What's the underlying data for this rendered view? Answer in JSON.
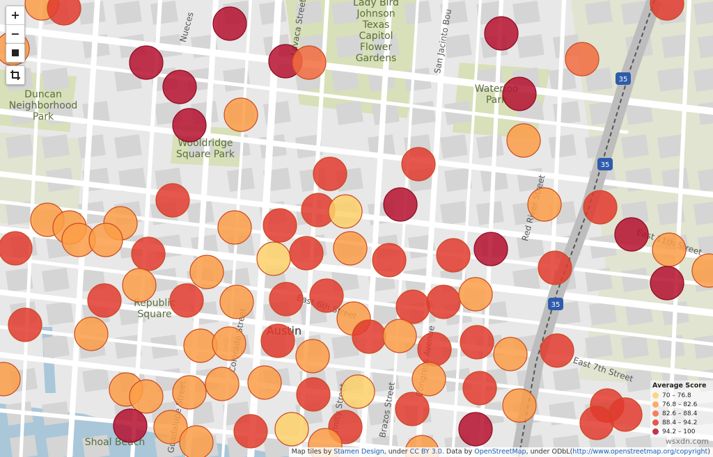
{
  "controls": {
    "zoom_in": "+",
    "zoom_out": "−",
    "stop_icon": "square-icon",
    "crop_icon": "crop-icon"
  },
  "places": [
    {
      "label": "Lady Bird\nJohnson\nTexas\nCapitol\nFlower\nGardens"
    },
    {
      "label": "Duncan\nNeighborhood\nPark"
    },
    {
      "label": "Wooldridge\nSquare Park"
    },
    {
      "label": "Waterloo\nPark"
    },
    {
      "label": "Republic\nSquare"
    },
    {
      "label": "Austin"
    },
    {
      "label": "Shoal Beach"
    }
  ],
  "streets": [
    {
      "label": "Nueces"
    },
    {
      "label": "Lavaca Street"
    },
    {
      "label": "San Jacinto Bou"
    },
    {
      "label": "East 6th Street"
    },
    {
      "label": "Colorado Street"
    },
    {
      "label": "Guadalupe Street"
    },
    {
      "label": "Trinity Street"
    },
    {
      "label": "Brazos Street"
    },
    {
      "label": "East 7th Street"
    },
    {
      "label": "East 11th Street"
    },
    {
      "label": "Red River Street"
    },
    {
      "label": "Congress Avenue"
    }
  ],
  "highway_shields": [
    "35",
    "35",
    "35"
  ],
  "colors": {
    "bin1": "#fdd06a",
    "bin2": "#fb9d47",
    "bin3": "#f26c3f",
    "bin4": "#e23a2e",
    "bin5": "#b5112f",
    "water": "#a9c7d9",
    "park": "#d7e0b8",
    "building": "#d9d9d9",
    "road": "#ffffff"
  },
  "legend": {
    "title": "Average Score",
    "entries": [
      {
        "label": "70 – 76.8",
        "color": "#fdd06a"
      },
      {
        "label": "76.8 – 82.6",
        "color": "#fb9d47"
      },
      {
        "label": "82.6 – 88.4",
        "color": "#f26c3f"
      },
      {
        "label": "88.4 – 94.2",
        "color": "#e23a2e"
      },
      {
        "label": "94.2 – 100",
        "color": "#b5112f"
      }
    ]
  },
  "attribution": {
    "part1": "Map tiles by ",
    "link1": "Stamen Design",
    "part2": ", under ",
    "link2": "CC BY 3.0",
    "part3": ". Data by ",
    "link3": "OpenStreetMap",
    "part4": ", under ODbL(",
    "link4": "http://www.openstreetmap.org/copyright",
    "part5": ")"
  },
  "watermark": "wsxdn.com"
}
